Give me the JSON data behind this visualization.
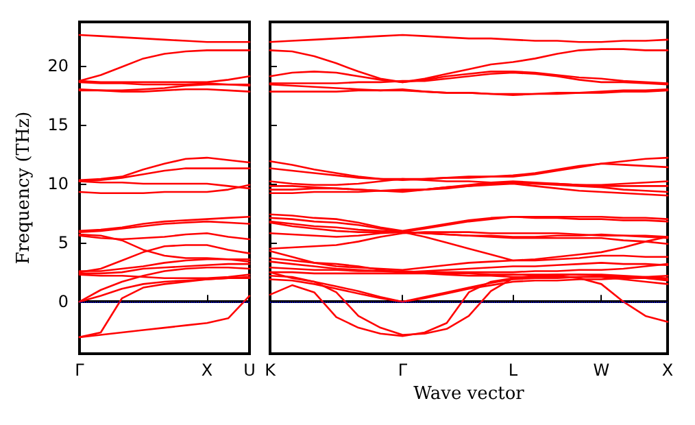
{
  "chart_data": [
    {
      "type": "line",
      "ylabel": "Frequency (THz)",
      "categories": [
        "Γ",
        null,
        null,
        null,
        null,
        null,
        "X",
        null,
        "U"
      ],
      "ylim": [
        -4.4,
        23.7
      ],
      "yticks": [
        0,
        5,
        10,
        15,
        20
      ],
      "grid": false,
      "marker": "none",
      "line_style": "solid",
      "ref_lines": [
        {
          "axis": "y",
          "value": 0,
          "color": "#0000ff",
          "line_style": "dotted"
        }
      ],
      "series": [
        {
          "color": "#ff0000",
          "values": [
            22.6,
            22.5,
            22.4,
            22.3,
            22.2,
            22.1,
            22.0,
            22.0,
            22.0
          ]
        },
        {
          "color": "#ff0000",
          "values": [
            18.7,
            19.2,
            19.9,
            20.6,
            21.0,
            21.2,
            21.3,
            21.3,
            21.3
          ]
        },
        {
          "color": "#ff0000",
          "values": [
            18.7,
            18.6,
            18.6,
            18.6,
            18.6,
            18.6,
            18.6,
            18.8,
            19.1
          ]
        },
        {
          "color": "#ff0000",
          "values": [
            18.6,
            18.5,
            18.5,
            18.4,
            18.4,
            18.4,
            18.5,
            18.4,
            18.3
          ]
        },
        {
          "color": "#ff0000",
          "values": [
            18.0,
            17.9,
            17.8,
            17.8,
            17.9,
            18.0,
            18.0,
            17.9,
            17.8
          ]
        },
        {
          "color": "#ff0000",
          "values": [
            17.9,
            17.9,
            17.9,
            18.0,
            18.1,
            18.3,
            18.4,
            18.4,
            18.4
          ]
        },
        {
          "color": "#ff0000",
          "values": [
            10.3,
            10.4,
            10.6,
            11.2,
            11.7,
            12.1,
            12.2,
            12.0,
            11.8
          ]
        },
        {
          "color": "#ff0000",
          "values": [
            10.2,
            10.3,
            10.5,
            10.8,
            11.1,
            11.3,
            11.3,
            11.3,
            11.3
          ]
        },
        {
          "color": "#ff0000",
          "values": [
            10.2,
            10.1,
            10.1,
            10.0,
            10.0,
            10.0,
            10.0,
            9.8,
            9.6
          ]
        },
        {
          "color": "#ff0000",
          "values": [
            9.3,
            9.2,
            9.2,
            9.2,
            9.3,
            9.3,
            9.3,
            9.5,
            9.9
          ]
        },
        {
          "color": "#ff0000",
          "values": [
            6.0,
            6.1,
            6.3,
            6.6,
            6.8,
            6.9,
            7.0,
            7.1,
            7.2
          ]
        },
        {
          "color": "#ff0000",
          "values": [
            5.9,
            6.0,
            6.2,
            6.4,
            6.6,
            6.7,
            6.8,
            6.7,
            6.6
          ]
        },
        {
          "color": "#ff0000",
          "values": [
            5.7,
            5.6,
            5.2,
            4.4,
            3.9,
            3.7,
            3.7,
            3.6,
            3.4
          ]
        },
        {
          "color": "#ff0000",
          "values": [
            5.6,
            5.4,
            5.3,
            5.4,
            5.5,
            5.7,
            5.8,
            5.5,
            5.3
          ]
        },
        {
          "color": "#ff0000",
          "values": [
            2.5,
            2.8,
            3.5,
            4.2,
            4.7,
            4.8,
            4.8,
            4.4,
            4.1
          ]
        },
        {
          "color": "#ff0000",
          "values": [
            2.6,
            2.6,
            2.8,
            3.0,
            3.3,
            3.5,
            3.6,
            3.6,
            3.6
          ]
        },
        {
          "color": "#ff0000",
          "values": [
            2.4,
            2.4,
            2.5,
            2.8,
            2.9,
            3.0,
            3.1,
            3.2,
            3.2
          ]
        },
        {
          "color": "#ff0000",
          "values": [
            2.3,
            2.2,
            2.2,
            2.1,
            2.0,
            2.0,
            2.0,
            2.1,
            2.3
          ]
        },
        {
          "color": "#ff0000",
          "values": [
            0,
            1.0,
            1.7,
            2.2,
            2.6,
            2.8,
            2.9,
            2.9,
            2.8
          ]
        },
        {
          "color": "#ff0000",
          "values": [
            0,
            0.5,
            1.1,
            1.5,
            1.7,
            1.8,
            1.9,
            2.0,
            2.0
          ]
        },
        {
          "color": "#ff0000",
          "values": [
            -3.0,
            -2.6,
            0.3,
            1.2,
            1.5,
            1.7,
            1.9,
            2.0,
            2.1
          ]
        },
        {
          "color": "#ff0000",
          "values": [
            -3.0,
            -2.8,
            -2.6,
            -2.4,
            -2.2,
            -2.0,
            -1.8,
            -1.4,
            0.5
          ]
        }
      ]
    },
    {
      "type": "line",
      "xlabel": "Wave vector",
      "categories": [
        "K",
        null,
        null,
        null,
        null,
        null,
        "Γ",
        null,
        null,
        null,
        null,
        "L",
        null,
        null,
        null,
        "W",
        null,
        null,
        "X"
      ],
      "ylim": [
        -4.4,
        23.7
      ],
      "yticks": [
        0,
        5,
        10,
        15,
        20
      ],
      "tick_labels": "x",
      "grid": false,
      "marker": "none",
      "line_style": "solid",
      "ref_lines": [
        {
          "axis": "y",
          "value": 0,
          "color": "#0000ff",
          "line_style": "dotted"
        }
      ],
      "series": [
        {
          "color": "#ff0000",
          "values": [
            22.0,
            22.1,
            22.2,
            22.3,
            22.4,
            22.5,
            22.6,
            22.5,
            22.4,
            22.3,
            22.3,
            22.2,
            22.1,
            22.1,
            22.0,
            22.0,
            22.1,
            22.1,
            22.2
          ]
        },
        {
          "color": "#ff0000",
          "values": [
            21.3,
            21.2,
            20.8,
            20.2,
            19.5,
            18.9,
            18.6,
            18.9,
            19.3,
            19.7,
            20.1,
            20.3,
            20.6,
            21.0,
            21.3,
            21.4,
            21.4,
            21.3,
            21.3
          ]
        },
        {
          "color": "#ff0000",
          "values": [
            19.1,
            19.4,
            19.5,
            19.4,
            19.1,
            18.8,
            18.6,
            18.8,
            19.1,
            19.3,
            19.5,
            19.5,
            19.4,
            19.2,
            19.0,
            18.9,
            18.7,
            18.6,
            18.5
          ]
        },
        {
          "color": "#ff0000",
          "values": [
            18.5,
            18.5,
            18.5,
            18.5,
            18.6,
            18.6,
            18.7,
            18.7,
            18.9,
            19.1,
            19.3,
            19.4,
            19.3,
            19.1,
            18.8,
            18.6,
            18.6,
            18.5,
            18.4
          ]
        },
        {
          "color": "#ff0000",
          "values": [
            18.4,
            18.3,
            18.2,
            18.1,
            18.0,
            17.9,
            17.9,
            17.8,
            17.7,
            17.7,
            17.6,
            17.6,
            17.6,
            17.7,
            17.7,
            17.8,
            17.9,
            17.9,
            18.0
          ]
        },
        {
          "color": "#ff0000",
          "values": [
            17.8,
            17.8,
            17.8,
            17.8,
            17.9,
            17.9,
            18.0,
            17.8,
            17.7,
            17.7,
            17.6,
            17.5,
            17.6,
            17.6,
            17.7,
            17.7,
            17.8,
            17.8,
            17.9
          ]
        },
        {
          "color": "#ff0000",
          "values": [
            11.9,
            11.6,
            11.2,
            10.9,
            10.6,
            10.4,
            10.4,
            10.4,
            10.5,
            10.6,
            10.6,
            10.7,
            10.9,
            11.2,
            11.5,
            11.7,
            11.9,
            12.1,
            12.2
          ]
        },
        {
          "color": "#ff0000",
          "values": [
            11.3,
            11.1,
            10.9,
            10.7,
            10.5,
            10.4,
            10.3,
            10.4,
            10.5,
            10.5,
            10.6,
            10.6,
            10.8,
            11.1,
            11.4,
            11.7,
            11.6,
            11.5,
            11.4
          ]
        },
        {
          "color": "#ff0000",
          "values": [
            10.2,
            10.0,
            9.9,
            9.9,
            10.0,
            10.2,
            10.4,
            10.3,
            10.2,
            10.2,
            10.1,
            10.1,
            10.0,
            10.0,
            9.9,
            9.9,
            10.0,
            10.1,
            10.2
          ]
        },
        {
          "color": "#ff0000",
          "values": [
            9.8,
            9.8,
            9.7,
            9.6,
            9.5,
            9.4,
            9.4,
            9.5,
            9.7,
            9.9,
            10.1,
            10.2,
            10.1,
            10.0,
            9.9,
            9.8,
            9.8,
            9.8,
            9.8
          ]
        },
        {
          "color": "#ff0000",
          "values": [
            9.5,
            9.5,
            9.6,
            9.6,
            9.5,
            9.4,
            9.3,
            9.5,
            9.6,
            9.8,
            9.9,
            10.0,
            9.8,
            9.6,
            9.4,
            9.3,
            9.2,
            9.1,
            9.0
          ]
        },
        {
          "color": "#ff0000",
          "values": [
            9.2,
            9.2,
            9.3,
            9.3,
            9.3,
            9.4,
            9.5,
            9.5,
            9.7,
            9.8,
            10.0,
            10.1,
            10.0,
            9.9,
            9.8,
            9.7,
            9.5,
            9.4,
            9.3
          ]
        },
        {
          "color": "#ff0000",
          "values": [
            7.4,
            7.3,
            7.1,
            7.0,
            6.7,
            6.3,
            6.0,
            6.3,
            6.6,
            6.9,
            7.1,
            7.2,
            7.2,
            7.2,
            7.2,
            7.2,
            7.1,
            7.1,
            7.0
          ]
        },
        {
          "color": "#ff0000",
          "values": [
            7.1,
            7.0,
            6.8,
            6.7,
            6.5,
            6.2,
            5.9,
            6.2,
            6.5,
            6.8,
            7.0,
            7.2,
            7.1,
            7.1,
            7.0,
            7.0,
            6.9,
            6.9,
            6.8
          ]
        },
        {
          "color": "#ff0000",
          "values": [
            6.8,
            6.6,
            6.4,
            6.3,
            6.1,
            6.0,
            5.9,
            5.8,
            5.7,
            5.6,
            5.6,
            5.5,
            5.5,
            5.6,
            5.6,
            5.7,
            5.6,
            5.6,
            5.5
          ]
        },
        {
          "color": "#ff0000",
          "values": [
            6.7,
            6.4,
            6.2,
            6.0,
            5.9,
            5.9,
            5.9,
            5.8,
            5.7,
            5.6,
            5.5,
            5.4,
            5.4,
            5.4,
            5.4,
            5.4,
            5.2,
            5.1,
            4.9
          ]
        },
        {
          "color": "#ff0000",
          "values": [
            5.8,
            5.7,
            5.6,
            5.5,
            5.6,
            5.8,
            5.9,
            5.5,
            5.0,
            4.5,
            4.0,
            3.5,
            3.6,
            3.8,
            4.0,
            4.2,
            4.6,
            5.1,
            5.5
          ]
        },
        {
          "color": "#ff0000",
          "values": [
            4.5,
            4.6,
            4.7,
            4.8,
            5.1,
            5.5,
            5.8,
            5.9,
            5.9,
            5.9,
            5.8,
            5.8,
            5.8,
            5.8,
            5.7,
            5.6,
            5.6,
            5.5,
            5.4
          ]
        },
        {
          "color": "#ff0000",
          "values": [
            4.3,
            3.8,
            3.3,
            3.0,
            2.9,
            2.8,
            2.7,
            2.9,
            3.1,
            3.3,
            3.4,
            3.5,
            3.5,
            3.6,
            3.7,
            3.9,
            3.9,
            3.8,
            3.8
          ]
        },
        {
          "color": "#ff0000",
          "values": [
            3.7,
            3.5,
            3.3,
            3.2,
            3.0,
            2.7,
            2.5,
            2.6,
            2.7,
            2.8,
            2.9,
            3.0,
            3.0,
            3.1,
            3.2,
            3.3,
            3.2,
            3.2,
            3.1
          ]
        },
        {
          "color": "#ff0000",
          "values": [
            3.4,
            3.2,
            3.0,
            2.8,
            2.7,
            2.6,
            2.6,
            2.5,
            2.5,
            2.5,
            2.5,
            2.5,
            2.6,
            2.6,
            2.7,
            2.7,
            2.8,
            3.0,
            3.2
          ]
        },
        {
          "color": "#ff0000",
          "values": [
            2.9,
            2.8,
            2.7,
            2.7,
            2.6,
            2.6,
            2.5,
            2.5,
            2.4,
            2.4,
            2.3,
            2.3,
            2.3,
            2.3,
            2.3,
            2.3,
            2.2,
            2.1,
            2.0
          ]
        },
        {
          "color": "#ff0000",
          "values": [
            2.5,
            2.5,
            2.4,
            2.4,
            2.4,
            2.4,
            2.4,
            2.4,
            2.3,
            2.2,
            2.2,
            2.1,
            2.1,
            2.1,
            2.1,
            2.1,
            2.0,
            2.0,
            1.9
          ]
        },
        {
          "color": "#ff0000",
          "values": [
            2.5,
            2.0,
            1.7,
            1.3,
            0.9,
            0.4,
            0,
            0.4,
            0.8,
            1.2,
            1.6,
            1.9,
            2.0,
            2.0,
            2.1,
            2.1,
            1.9,
            1.7,
            1.5
          ]
        },
        {
          "color": "#ff0000",
          "values": [
            1.9,
            1.8,
            1.5,
            1.1,
            0.7,
            0.3,
            0,
            0.3,
            0.7,
            1.1,
            1.4,
            1.7,
            1.8,
            1.8,
            1.9,
            1.9,
            2.0,
            2.1,
            2.2
          ]
        },
        {
          "color": "#ff0000",
          "values": [
            0.6,
            1.4,
            0.8,
            -1.3,
            -2.2,
            -2.7,
            -2.9,
            -2.6,
            -1.8,
            0.8,
            1.7,
            2.0,
            2.1,
            2.2,
            2.0,
            1.5,
            0.0,
            -1.2,
            -1.7
          ]
        },
        {
          "color": "#ff0000",
          "values": [
            2.2,
            2.1,
            1.7,
            0.8,
            -1.2,
            -2.2,
            -2.8,
            -2.7,
            -2.3,
            -1.2,
            0.9,
            2.0,
            2.2,
            2.3,
            2.3,
            2.2,
            2.1,
            2.0,
            1.8
          ]
        }
      ]
    }
  ]
}
